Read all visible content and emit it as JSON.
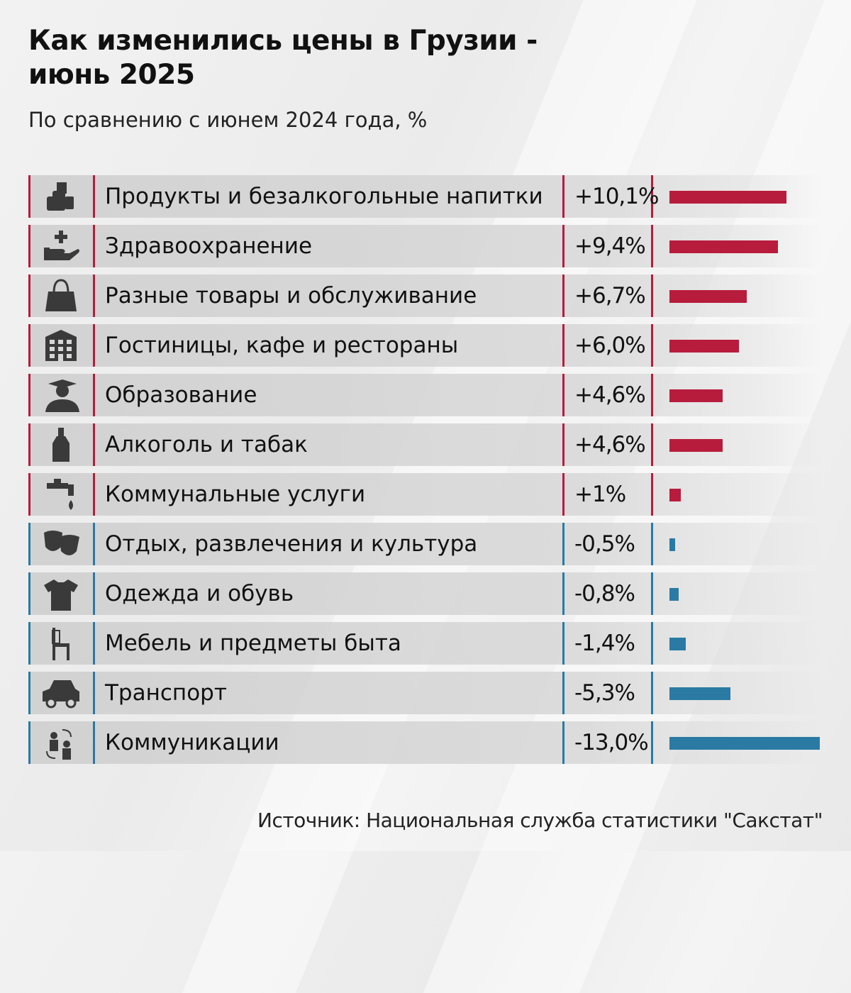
{
  "chart_data": {
    "type": "bar",
    "orientation": "horizontal",
    "title": "Как изменились цены в Грузии - июнь 2025",
    "subtitle": "По сравнению с июнем 2024 года, %",
    "source": "Источник: Национальная служба статистики \"Сакстат\"",
    "colors": {
      "positive": "#b81c3c",
      "negative": "#2a7aa3"
    },
    "categories": [
      {
        "label": "Продукты и безалкогольные напитки",
        "value": 10.1,
        "display": "+10,1%",
        "icon": "groceries-icon"
      },
      {
        "label": "Здравоохранение",
        "value": 9.4,
        "display": "+9,4%",
        "icon": "healthcare-hand-icon"
      },
      {
        "label": "Разные товары и обслуживание",
        "value": 6.7,
        "display": "+6,7%",
        "icon": "shopping-bag-icon"
      },
      {
        "label": "Гостиницы, кафе и рестораны",
        "value": 6.0,
        "display": "+6,0%",
        "icon": "hotel-building-icon"
      },
      {
        "label": "Образование",
        "value": 4.6,
        "display": "+4,6%",
        "icon": "graduate-icon"
      },
      {
        "label": "Алкоголь и табак",
        "value": 4.6,
        "display": "+4,6%",
        "icon": "bottle-icon"
      },
      {
        "label": "Коммунальные услуги",
        "value": 1,
        "display": "+1%",
        "icon": "water-tap-icon"
      },
      {
        "label": "Отдых, развлечения и культура",
        "value": -0.5,
        "display": "-0,5%",
        "icon": "theater-masks-icon"
      },
      {
        "label": "Одежда и обувь",
        "value": -0.8,
        "display": "-0,8%",
        "icon": "tshirt-icon"
      },
      {
        "label": "Мебель и предметы быта",
        "value": -1.4,
        "display": "-1,4%",
        "icon": "chair-icon"
      },
      {
        "label": "Транспорт",
        "value": -5.3,
        "display": "-5,3%",
        "icon": "car-icon"
      },
      {
        "label": "Коммуникации",
        "value": -13.0,
        "display": "-13,0%",
        "icon": "people-communication-icon"
      }
    ]
  }
}
